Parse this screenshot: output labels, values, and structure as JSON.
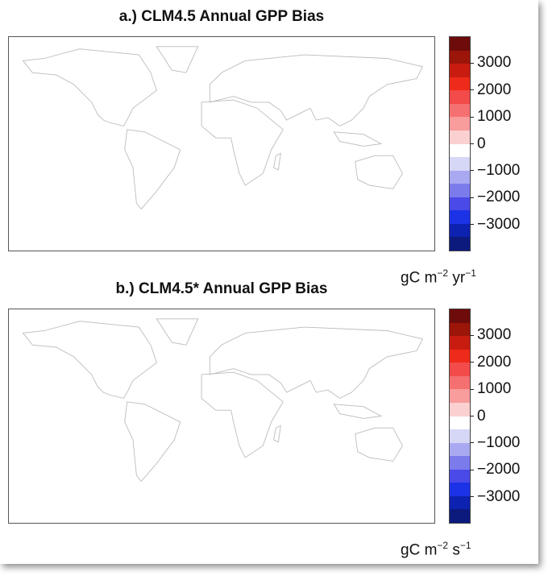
{
  "panels": [
    {
      "title": "a.) CLM4.5 Annual GPP Bias",
      "unit": {
        "base": "gC m",
        "exp1": "−2",
        "mid": " yr",
        "exp2": "−1"
      }
    },
    {
      "title": "b.) CLM4.5* Annual GPP Bias",
      "unit": {
        "base": "gC m",
        "exp1": "−2",
        "mid": " s",
        "exp2": "−1"
      }
    }
  ],
  "colorbar": {
    "range": [
      -4000,
      4000
    ],
    "ticks": [
      "3000",
      "2000",
      "1000",
      "0",
      "−1000",
      "−2000",
      "−3000"
    ],
    "tick_values": [
      3000,
      2000,
      1000,
      0,
      -1000,
      -2000,
      -3000
    ],
    "colors": [
      "#6e0b0b",
      "#9c1509",
      "#c91c10",
      "#ee2a1a",
      "#f34a4a",
      "#f57070",
      "#f89c9c",
      "#fbd0d0",
      "#ffffff",
      "#d6d6f6",
      "#a9a9f1",
      "#7b7bec",
      "#4a4ae9",
      "#1c32e6",
      "#0d22b0",
      "#0b1a7c"
    ]
  }
}
